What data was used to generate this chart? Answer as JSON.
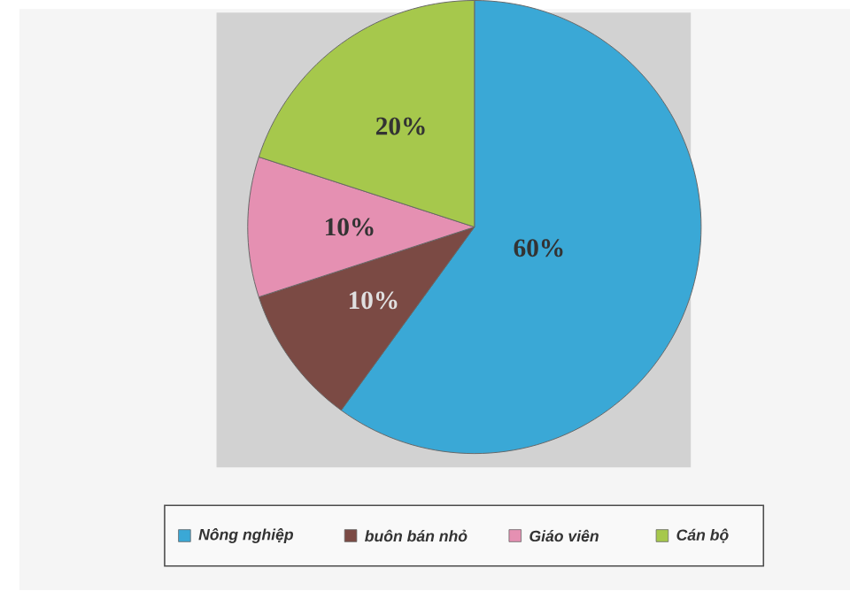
{
  "chart_data": {
    "type": "pie",
    "categories": [
      "Nông nghiệp",
      "buôn bán nhỏ",
      "Giáo viên",
      "Cán bộ"
    ],
    "values": [
      60,
      10,
      10,
      20
    ],
    "colors": [
      "#3aa8d6",
      "#7b4a44",
      "#e590b2",
      "#a6c84c"
    ],
    "value_labels": [
      "60%",
      "10%",
      "10%",
      "20%"
    ],
    "legend": "bottom"
  }
}
